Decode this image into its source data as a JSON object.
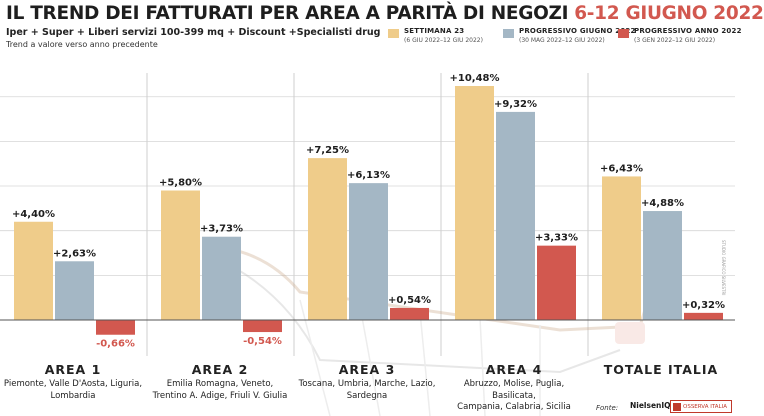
{
  "header": {
    "title_main": "IL TREND DEI FATTURATI PER AREA A PARITÀ DI NEGOZI",
    "title_date": "6-12 GIUGNO 2022",
    "subtitle": "Iper + Super + Liberi servizi 100-399 mq + Discount +Specialisti drug",
    "note": "Trend a valore verso anno precedente"
  },
  "legend": [
    {
      "title": "SETTIMANA 23",
      "sub": "(6 GIU 2022–12 GIU 2022)",
      "color": "#efcc8a"
    },
    {
      "title": "PROGRESSIVO GIUGNO 2022",
      "sub": "(30 MAG 2022–12 GIU 2022)",
      "color": "#a4b7c5"
    },
    {
      "title": "PROGRESSIVO ANNO 2022",
      "sub": "(3 GEN 2022–12 GIU 2022)",
      "color": "#d2584f"
    }
  ],
  "chart_data": {
    "type": "bar",
    "title": "IL TREND DEI FATTURATI PER AREA A PARITÀ DI NEGOZI 6-12 GIUGNO 2022",
    "categories": [
      "AREA 1",
      "AREA 2",
      "AREA 3",
      "AREA 4",
      "TOTALE ITALIA"
    ],
    "series": [
      {
        "name": "SETTIMANA 23",
        "color": "#efcc8a",
        "values": [
          4.4,
          5.8,
          7.25,
          10.48,
          6.43
        ],
        "labels": [
          "+4,40%",
          "+5,80%",
          "+7,25%",
          "+10,48%",
          "+6,43%"
        ]
      },
      {
        "name": "PROGRESSIVO GIUGNO 2022",
        "color": "#a4b7c5",
        "values": [
          2.63,
          3.73,
          6.13,
          9.32,
          4.88
        ],
        "labels": [
          "+2,63%",
          "+3,73%",
          "+6,13%",
          "+9,32%",
          "+4,88%"
        ]
      },
      {
        "name": "PROGRESSIVO ANNO 2022",
        "color": "#d2584f",
        "values": [
          -0.66,
          -0.54,
          0.54,
          3.33,
          0.32
        ],
        "labels": [
          "-0,66%",
          "-0,54%",
          "+0,54%",
          "+3,33%",
          "+0,32%"
        ]
      }
    ],
    "ylim": [
      -1.4,
      11.2
    ],
    "grid": true,
    "legend_position": "top-right"
  },
  "areas": [
    {
      "title": "AREA 1",
      "regions": [
        "Piemonte, Valle D'Aosta, Liguria,",
        "Lombardia"
      ]
    },
    {
      "title": "AREA 2",
      "regions": [
        "Emilia Romagna, Veneto,",
        "Trentino A. Adige, Friuli V. Giulia"
      ]
    },
    {
      "title": "AREA 3",
      "regions": [
        "Toscana, Umbria, Marche, Lazio,",
        "Sardegna"
      ]
    },
    {
      "title": "AREA 4",
      "regions": [
        "Abruzzo, Molise, Puglia, Basilicata,",
        "Campania, Calabria, Sicilia"
      ]
    },
    {
      "title": "TOTALE ITALIA",
      "regions": []
    }
  ],
  "footer": {
    "source_label": "Fonte:",
    "logo1_text": "NielsenIQ",
    "logo2_text": "OSSERVA ITALIA"
  },
  "credit": "STUDIO GRAFICO SILVESTRI"
}
